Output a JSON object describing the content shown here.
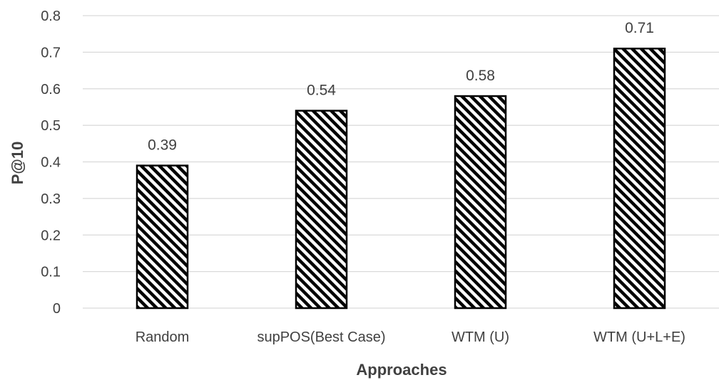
{
  "chart_data": {
    "type": "bar",
    "title": "",
    "xlabel": "Approaches",
    "ylabel": "P@10",
    "categories": [
      "Random",
      "supPOS(Best Case)",
      "WTM (U)",
      "WTM (U+L+E)"
    ],
    "values": [
      0.39,
      0.54,
      0.58,
      0.71
    ],
    "data_labels": [
      "0.39",
      "0.54",
      "0.58",
      "0.71"
    ],
    "ylim": [
      0,
      0.8
    ],
    "yticks": [
      0,
      0.1,
      0.2,
      0.3,
      0.4,
      0.5,
      0.6,
      0.7,
      0.8
    ],
    "ytick_labels": [
      "0",
      "0.1",
      "0.2",
      "0.3",
      "0.4",
      "0.5",
      "0.6",
      "0.7",
      "0.8"
    ],
    "grid": true,
    "legend": "none",
    "bar_fill": "diagonal-hatch",
    "colors": {
      "bar_stroke": "#000000",
      "hatch": "#000000",
      "grid": "#d9d9d9",
      "text": "#404040"
    }
  }
}
